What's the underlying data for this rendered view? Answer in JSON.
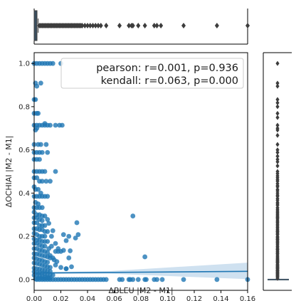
{
  "chart_data": {
    "type": "scatter",
    "title": "",
    "xlabel": "ΔBLEU |M2 - M1|",
    "ylabel": "ΔOCHIAI |M2 - M1|",
    "xlim": [
      0,
      0.16
    ],
    "ylim": [
      -0.05,
      1.05
    ],
    "xticks": [
      "0.00",
      "0.02",
      "0.04",
      "0.06",
      "0.08",
      "0.10",
      "0.12",
      "0.14",
      "0.16"
    ],
    "yticks": [
      "0.0",
      "0.2",
      "0.4",
      "0.6",
      "0.8",
      "1.0"
    ],
    "grid": false,
    "colors": {
      "points": "#1f77b4",
      "box": "#3a4e5f",
      "band": "#a8c8e4",
      "frame": "#000000"
    },
    "annotation": {
      "line1": "pearson: r=0.001, p=0.936",
      "line2": "kendall: r=0.063, p=0.000"
    },
    "regression": {
      "intercept": 0.03,
      "slope": 0.05,
      "ci_low_end": 0.002,
      "ci_high_end": 0.078
    },
    "series": [
      {
        "points": [
          [
            0.0,
            1.0
          ],
          [
            0.002,
            1.0
          ],
          [
            0.004,
            1.0
          ],
          [
            0.006,
            1.0
          ],
          [
            0.008,
            1.0
          ],
          [
            0.01,
            1.0
          ],
          [
            0.012,
            1.0
          ],
          [
            0.014,
            1.0
          ],
          [
            0.02,
            1.0
          ],
          [
            0.001,
            0.909
          ],
          [
            0.002,
            0.895
          ],
          [
            0.005,
            0.909
          ],
          [
            0.0,
            0.833
          ],
          [
            0.001,
            0.833
          ],
          [
            0.0,
            0.769
          ],
          [
            0.002,
            0.769
          ],
          [
            0.003,
            0.769
          ],
          [
            0.0,
            0.714
          ],
          [
            0.002,
            0.714
          ],
          [
            0.004,
            0.714
          ],
          [
            0.006,
            0.714
          ],
          [
            0.008,
            0.714
          ],
          [
            0.01,
            0.714
          ],
          [
            0.012,
            0.714
          ],
          [
            0.016,
            0.714
          ],
          [
            0.019,
            0.714
          ],
          [
            0.021,
            0.714
          ],
          [
            0.008,
            0.722
          ],
          [
            0.001,
            0.692
          ],
          [
            0.002,
            0.7
          ],
          [
            0.0,
            0.625
          ],
          [
            0.003,
            0.625
          ],
          [
            0.005,
            0.625
          ],
          [
            0.009,
            0.625
          ],
          [
            0.0,
            0.588
          ],
          [
            0.002,
            0.588
          ],
          [
            0.004,
            0.588
          ],
          [
            0.006,
            0.588
          ],
          [
            0.01,
            0.588
          ],
          [
            0.0,
            0.556
          ],
          [
            0.002,
            0.556
          ],
          [
            0.004,
            0.556
          ],
          [
            0.0,
            0.5
          ],
          [
            0.002,
            0.5
          ],
          [
            0.004,
            0.5
          ],
          [
            0.006,
            0.5
          ],
          [
            0.008,
            0.5
          ],
          [
            0.016,
            0.5
          ],
          [
            0.0,
            0.471
          ],
          [
            0.002,
            0.471
          ],
          [
            0.004,
            0.455
          ],
          [
            0.006,
            0.455
          ],
          [
            0.009,
            0.455
          ],
          [
            0.012,
            0.455
          ],
          [
            0.0,
            0.429
          ],
          [
            0.001,
            0.417
          ],
          [
            0.003,
            0.417
          ],
          [
            0.005,
            0.4
          ],
          [
            0.0,
            0.385
          ],
          [
            0.002,
            0.385
          ],
          [
            0.004,
            0.385
          ],
          [
            0.006,
            0.385
          ],
          [
            0.008,
            0.385
          ],
          [
            0.01,
            0.385
          ],
          [
            0.001,
            0.357
          ],
          [
            0.003,
            0.35
          ],
          [
            0.0,
            0.333
          ],
          [
            0.002,
            0.333
          ],
          [
            0.004,
            0.333
          ],
          [
            0.006,
            0.333
          ],
          [
            0.0,
            0.312
          ],
          [
            0.002,
            0.3
          ],
          [
            0.004,
            0.3
          ],
          [
            0.006,
            0.294
          ],
          [
            0.008,
            0.294
          ],
          [
            0.0,
            0.286
          ],
          [
            0.002,
            0.286
          ],
          [
            0.004,
            0.278
          ],
          [
            0.006,
            0.273
          ],
          [
            0.01,
            0.278
          ],
          [
            0.0,
            0.263
          ],
          [
            0.002,
            0.263
          ],
          [
            0.004,
            0.25
          ],
          [
            0.006,
            0.25
          ],
          [
            0.008,
            0.25
          ],
          [
            0.011,
            0.26
          ],
          [
            0.0,
            0.235
          ],
          [
            0.002,
            0.235
          ],
          [
            0.004,
            0.231
          ],
          [
            0.006,
            0.231
          ],
          [
            0.008,
            0.222
          ],
          [
            0.01,
            0.222
          ],
          [
            0.014,
            0.226
          ],
          [
            0.0,
            0.214
          ],
          [
            0.002,
            0.208
          ],
          [
            0.004,
            0.2
          ],
          [
            0.006,
            0.2
          ],
          [
            0.008,
            0.2
          ],
          [
            0.0,
            0.188
          ],
          [
            0.002,
            0.182
          ],
          [
            0.004,
            0.182
          ],
          [
            0.006,
            0.176
          ],
          [
            0.008,
            0.176
          ],
          [
            0.01,
            0.176
          ],
          [
            0.0,
            0.167
          ],
          [
            0.002,
            0.167
          ],
          [
            0.004,
            0.16
          ],
          [
            0.006,
            0.154
          ],
          [
            0.008,
            0.154
          ],
          [
            0.0,
            0.143
          ],
          [
            0.002,
            0.143
          ],
          [
            0.004,
            0.136
          ],
          [
            0.006,
            0.133
          ],
          [
            0.008,
            0.13
          ],
          [
            0.01,
            0.125
          ],
          [
            0.0,
            0.12
          ],
          [
            0.002,
            0.118
          ],
          [
            0.004,
            0.115
          ],
          [
            0.006,
            0.111
          ],
          [
            0.008,
            0.108
          ],
          [
            0.01,
            0.105
          ],
          [
            0.012,
            0.1
          ],
          [
            0.0,
            0.1
          ],
          [
            0.002,
            0.095
          ],
          [
            0.004,
            0.091
          ],
          [
            0.006,
            0.088
          ],
          [
            0.008,
            0.083
          ],
          [
            0.01,
            0.08
          ],
          [
            0.0,
            0.077
          ],
          [
            0.002,
            0.074
          ],
          [
            0.004,
            0.071
          ],
          [
            0.006,
            0.067
          ],
          [
            0.008,
            0.063
          ],
          [
            0.01,
            0.059
          ],
          [
            0.012,
            0.056
          ],
          [
            0.0,
            0.053
          ],
          [
            0.002,
            0.05
          ],
          [
            0.004,
            0.048
          ],
          [
            0.006,
            0.045
          ],
          [
            0.008,
            0.043
          ],
          [
            0.01,
            0.04
          ],
          [
            0.012,
            0.038
          ],
          [
            0.0,
            0.036
          ],
          [
            0.002,
            0.033
          ],
          [
            0.004,
            0.031
          ],
          [
            0.006,
            0.029
          ],
          [
            0.008,
            0.027
          ],
          [
            0.01,
            0.025
          ],
          [
            0.012,
            0.023
          ],
          [
            0.014,
            0.021
          ],
          [
            0.0,
            0.02
          ],
          [
            0.002,
            0.018
          ],
          [
            0.004,
            0.016
          ],
          [
            0.006,
            0.014
          ],
          [
            0.008,
            0.012
          ],
          [
            0.01,
            0.01
          ],
          [
            0.012,
            0.008
          ],
          [
            0.013,
            0.2
          ],
          [
            0.016,
            0.167
          ],
          [
            0.018,
            0.143
          ],
          [
            0.016,
            0.13
          ],
          [
            0.018,
            0.13
          ],
          [
            0.017,
            0.083
          ],
          [
            0.016,
            0.067
          ],
          [
            0.02,
            0.056
          ],
          [
            0.024,
            0.05
          ],
          [
            0.012,
            0.111
          ],
          [
            0.014,
            0.1
          ],
          [
            0.015,
            0.091
          ],
          [
            0.011,
            0.143
          ],
          [
            0.013,
            0.154
          ],
          [
            0.022,
            0.208
          ],
          [
            0.026,
            0.2
          ],
          [
            0.024,
            0.18
          ],
          [
            0.022,
            0.135
          ],
          [
            0.02,
            0.13
          ],
          [
            0.027,
            0.133
          ],
          [
            0.026,
            0.1
          ],
          [
            0.028,
            0.059
          ],
          [
            0.024,
            0.05
          ],
          [
            0.031,
            0.192
          ],
          [
            0.033,
            0.208
          ],
          [
            0.032,
            0.263
          ],
          [
            0.074,
            0.294
          ],
          [
            0.083,
            0.105
          ],
          [
            0.002,
            0.0
          ],
          [
            0.004,
            0.0
          ],
          [
            0.006,
            0.0
          ],
          [
            0.008,
            0.0
          ],
          [
            0.01,
            0.0
          ],
          [
            0.012,
            0.0
          ],
          [
            0.014,
            0.0
          ],
          [
            0.016,
            0.0
          ],
          [
            0.018,
            0.0
          ],
          [
            0.02,
            0.0
          ],
          [
            0.022,
            0.0
          ],
          [
            0.024,
            0.0
          ],
          [
            0.026,
            0.0
          ],
          [
            0.028,
            0.0
          ],
          [
            0.03,
            0.0
          ],
          [
            0.032,
            0.0
          ],
          [
            0.034,
            0.0
          ],
          [
            0.036,
            0.0
          ],
          [
            0.038,
            0.0
          ],
          [
            0.04,
            0.0
          ],
          [
            0.042,
            0.0
          ],
          [
            0.044,
            0.0
          ],
          [
            0.046,
            0.0
          ],
          [
            0.048,
            0.0
          ],
          [
            0.05,
            0.0
          ],
          [
            0.052,
            0.0
          ],
          [
            0.054,
            0.0
          ],
          [
            0.064,
            0.0
          ],
          [
            0.066,
            0.0
          ],
          [
            0.071,
            0.0
          ],
          [
            0.072,
            0.0
          ],
          [
            0.074,
            0.0
          ],
          [
            0.078,
            0.0
          ],
          [
            0.083,
            0.0
          ],
          [
            0.084,
            0.0
          ],
          [
            0.09,
            0.0
          ],
          [
            0.092,
            0.0
          ],
          [
            0.096,
            0.0
          ],
          [
            0.112,
            0.0
          ],
          [
            0.137,
            0.0
          ],
          [
            0.16,
            0.0
          ],
          [
            0.003,
            0.005
          ],
          [
            0.005,
            0.006
          ],
          [
            0.007,
            0.004
          ],
          [
            0.009,
            0.006
          ],
          [
            0.011,
            0.005
          ],
          [
            0.001,
            0.003
          ]
        ]
      }
    ],
    "marginal_x": {
      "type": "boxplot",
      "q1": 0.0,
      "median": 0.0,
      "q3": 0.001,
      "whisker_high": 0.003,
      "outliers": [
        0.004,
        0.005,
        0.006,
        0.007,
        0.008,
        0.009,
        0.01,
        0.011,
        0.012,
        0.013,
        0.014,
        0.015,
        0.016,
        0.017,
        0.018,
        0.019,
        0.02,
        0.021,
        0.022,
        0.023,
        0.024,
        0.025,
        0.026,
        0.027,
        0.028,
        0.029,
        0.03,
        0.031,
        0.032,
        0.033,
        0.034,
        0.035,
        0.036,
        0.038,
        0.04,
        0.042,
        0.044,
        0.046,
        0.048,
        0.05,
        0.054,
        0.064,
        0.071,
        0.073,
        0.074,
        0.078,
        0.083,
        0.09,
        0.092,
        0.095,
        0.112,
        0.137,
        0.16
      ]
    },
    "marginal_y": {
      "type": "boxplot",
      "q1": 0.0,
      "median": 0.0,
      "q3": 0.0,
      "whisker_high": 0.0,
      "outliers": [
        1.0,
        0.909,
        0.895,
        0.833,
        0.818,
        0.8,
        0.769,
        0.75,
        0.714,
        0.7,
        0.692,
        0.667,
        0.625,
        0.6,
        0.588,
        0.571,
        0.556,
        0.545,
        0.526,
        0.5,
        0.49,
        0.48,
        0.471,
        0.462,
        0.455,
        0.444,
        0.435,
        0.429,
        0.417,
        0.41,
        0.4,
        0.391,
        0.385,
        0.375,
        0.367,
        0.357,
        0.35,
        0.344,
        0.333,
        0.325,
        0.318,
        0.312,
        0.306,
        0.3,
        0.294,
        0.289,
        0.286,
        0.28,
        0.273,
        0.267,
        0.263,
        0.256,
        0.25,
        0.243,
        0.238,
        0.231,
        0.226,
        0.222,
        0.217,
        0.211,
        0.208,
        0.2,
        0.195,
        0.19,
        0.185,
        0.182,
        0.176,
        0.172,
        0.167,
        0.161,
        0.154,
        0.15,
        0.143,
        0.14,
        0.136,
        0.13,
        0.125,
        0.12,
        0.118,
        0.111,
        0.105,
        0.1,
        0.095,
        0.091,
        0.087,
        0.083,
        0.08,
        0.077,
        0.071,
        0.067,
        0.063,
        0.059,
        0.056,
        0.053,
        0.05,
        0.045,
        0.043,
        0.04,
        0.036,
        0.033,
        0.03,
        0.027,
        0.025,
        0.021,
        0.018,
        0.014,
        0.01,
        0.005
      ]
    }
  }
}
